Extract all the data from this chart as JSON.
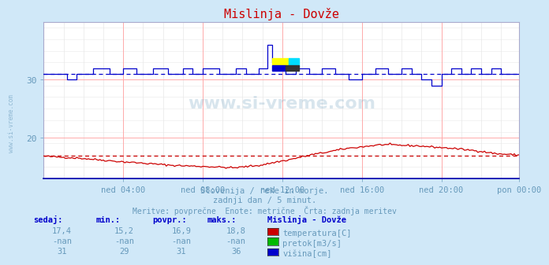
{
  "title": "Mislinja - Dovže",
  "bg_color": "#d0e8f8",
  "plot_bg_color": "#ffffff",
  "grid_color_major": "#ffaaaa",
  "grid_color_minor": "#e8e8e8",
  "xlabel_ticks": [
    "ned 04:00",
    "ned 08:00",
    "ned 12:00",
    "ned 16:00",
    "ned 20:00",
    "pon 00:00"
  ],
  "ylim": [
    13,
    40
  ],
  "yticks": [
    20,
    30
  ],
  "temp_color": "#cc0000",
  "pretok_color": "#00aa00",
  "visina_color": "#0000cc",
  "temp_avg": 16.9,
  "visina_avg": 31.0,
  "subtitle1": "Slovenija / reke in morje.",
  "subtitle2": "zadnji dan / 5 minut.",
  "subtitle3": "Meritve: povprečne  Enote: metrične  Črta: zadnja meritev",
  "table_headers": [
    "sedaj:",
    "min.:",
    "povpr.:",
    "maks.:"
  ],
  "table_data": [
    [
      "17,4",
      "15,2",
      "16,9",
      "18,8",
      "temperatura[C]",
      "#cc0000"
    ],
    [
      "-nan",
      "-nan",
      "-nan",
      "-nan",
      "pretok[m3/s]",
      "#00bb00"
    ],
    [
      "31",
      "29",
      "31",
      "36",
      "višina[cm]",
      "#0000cc"
    ]
  ],
  "station_label": "Mislinja - Dovže",
  "text_color": "#6699bb",
  "header_color": "#0000cc",
  "title_color": "#cc0000",
  "watermark_color": "#6699bb",
  "watermark_alpha": 0.25,
  "n_points": 288
}
